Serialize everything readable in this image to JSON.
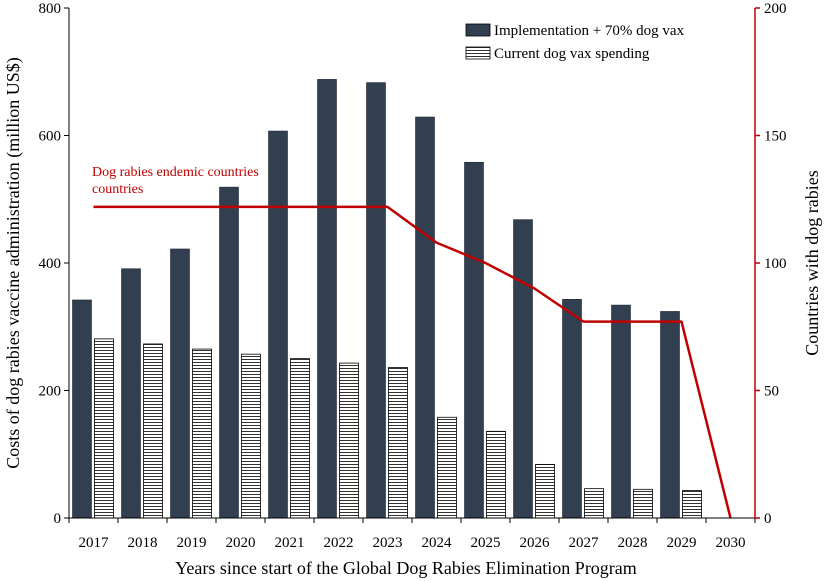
{
  "chart_data": {
    "type": "bar",
    "categories": [
      "2017",
      "2018",
      "2019",
      "2020",
      "2021",
      "2022",
      "2023",
      "2024",
      "2025",
      "2026",
      "2027",
      "2028",
      "2029",
      "2030"
    ],
    "series": [
      {
        "name": "Implementation + 70% dog vax",
        "axis": "left",
        "type": "bar",
        "color": "#323f51",
        "values": [
          342,
          391,
          422,
          519,
          607,
          688,
          683,
          629,
          558,
          468,
          343,
          334,
          324,
          null
        ]
      },
      {
        "name": "Current dog vax spending",
        "axis": "left",
        "type": "bar",
        "pattern": "horizontal-stripes",
        "values": [
          281,
          273,
          265,
          257,
          250,
          243,
          236,
          158,
          136,
          84,
          46,
          45,
          43,
          null
        ]
      },
      {
        "name": "Dog rabies endemic countries",
        "axis": "right",
        "type": "line",
        "color": "#c00000",
        "values": [
          122,
          122,
          122,
          122,
          122,
          122,
          122,
          108,
          100,
          90,
          77,
          77,
          77,
          0
        ]
      }
    ],
    "xlabel": "Years since start of the Global Dog Rabies Elimination Program",
    "ylabel": "Costs of dog rabies vaccine administration (million US$)",
    "y2label": "Countries with dog rabies",
    "ylim": [
      0,
      800
    ],
    "y2lim": [
      0,
      200
    ],
    "yticks": [
      0,
      200,
      400,
      600,
      800
    ],
    "y2ticks": [
      0,
      50,
      100,
      150,
      200
    ],
    "legend_position": "top-right",
    "annotation": {
      "lines": [
        "Dog rabies endemic countries",
        "countries"
      ],
      "color": "#c00000"
    },
    "grid": false
  }
}
